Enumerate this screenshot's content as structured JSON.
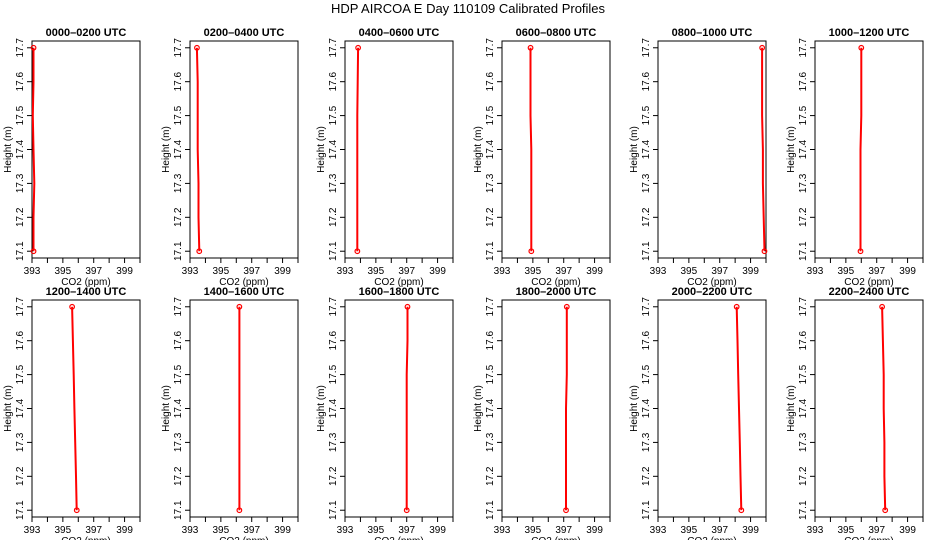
{
  "title": "HDP AIRCOA E  Day 110109  Calibrated Profiles",
  "colors": {
    "profile": "#ff0000",
    "axis": "#000000"
  },
  "axes": {
    "xlabel": "CO2 (ppm)",
    "ylabel": "Height (m)",
    "xlim": [
      393,
      400
    ],
    "ylim": [
      17.08,
      17.72
    ],
    "xticks": [
      393,
      394,
      395,
      396,
      397,
      398,
      399,
      400
    ],
    "xticklabels": [
      "393",
      "",
      "395",
      "",
      "397",
      "",
      "399",
      ""
    ],
    "yticks": [
      17.1,
      17.2,
      17.3,
      17.4,
      17.5,
      17.6,
      17.7
    ],
    "yticklabels": [
      "17.1",
      "17.2",
      "17.3",
      "17.4",
      "17.5",
      "17.6",
      "17.7"
    ]
  },
  "chart_data": [
    {
      "type": "line",
      "title": "0000–0200 UTC",
      "x": [
        393.1,
        393.1,
        393.15,
        393.1,
        393.05,
        393.1,
        393.1
      ],
      "y": [
        17.1,
        17.2,
        17.3,
        17.4,
        17.5,
        17.6,
        17.7
      ]
    },
    {
      "type": "line",
      "title": "0200–0400 UTC",
      "x": [
        393.6,
        393.55,
        393.55,
        393.5,
        393.5,
        393.5,
        393.45
      ],
      "y": [
        17.1,
        17.2,
        17.3,
        17.4,
        17.5,
        17.6,
        17.7
      ]
    },
    {
      "type": "line",
      "title": "0400–0600 UTC",
      "x": [
        393.8,
        393.8,
        393.8,
        393.8,
        393.8,
        393.82,
        393.85
      ],
      "y": [
        17.1,
        17.2,
        17.3,
        17.4,
        17.5,
        17.6,
        17.7
      ]
    },
    {
      "type": "line",
      "title": "0600–0800 UTC",
      "x": [
        394.9,
        394.9,
        394.9,
        394.9,
        394.85,
        394.85,
        394.85
      ],
      "y": [
        17.1,
        17.2,
        17.3,
        17.4,
        17.5,
        17.6,
        17.7
      ]
    },
    {
      "type": "line",
      "title": "0800–1000 UTC",
      "x": [
        399.9,
        399.85,
        399.8,
        399.8,
        399.75,
        399.75,
        399.75
      ],
      "y": [
        17.1,
        17.2,
        17.3,
        17.4,
        17.5,
        17.6,
        17.7
      ]
    },
    {
      "type": "line",
      "title": "1000–1200 UTC",
      "x": [
        395.95,
        395.95,
        395.95,
        395.95,
        396.0,
        396.0,
        396.0
      ],
      "y": [
        17.1,
        17.2,
        17.3,
        17.4,
        17.5,
        17.6,
        17.7
      ]
    },
    {
      "type": "line",
      "title": "1200–1400 UTC",
      "x": [
        395.9,
        395.85,
        395.8,
        395.75,
        395.7,
        395.65,
        395.6
      ],
      "y": [
        17.1,
        17.2,
        17.3,
        17.4,
        17.5,
        17.6,
        17.7
      ]
    },
    {
      "type": "line",
      "title": "1400–1600 UTC",
      "x": [
        396.2,
        396.2,
        396.2,
        396.2,
        396.2,
        396.2,
        396.2
      ],
      "y": [
        17.1,
        17.2,
        17.3,
        17.4,
        17.5,
        17.6,
        17.7
      ]
    },
    {
      "type": "line",
      "title": "1600–1800 UTC",
      "x": [
        397.0,
        397.0,
        397.0,
        397.0,
        397.0,
        397.05,
        397.05
      ],
      "y": [
        17.1,
        17.2,
        17.3,
        17.4,
        17.5,
        17.6,
        17.7
      ]
    },
    {
      "type": "line",
      "title": "1800–2000 UTC",
      "x": [
        397.15,
        397.15,
        397.15,
        397.15,
        397.2,
        397.2,
        397.2
      ],
      "y": [
        17.1,
        17.2,
        17.3,
        17.4,
        17.5,
        17.6,
        17.7
      ]
    },
    {
      "type": "line",
      "title": "2000–2200 UTC",
      "x": [
        398.4,
        398.35,
        398.3,
        398.25,
        398.2,
        398.15,
        398.1
      ],
      "y": [
        17.1,
        17.2,
        17.3,
        17.4,
        17.5,
        17.6,
        17.7
      ]
    },
    {
      "type": "line",
      "title": "2200–2400 UTC",
      "x": [
        397.55,
        397.5,
        397.5,
        397.45,
        397.45,
        397.4,
        397.35
      ],
      "y": [
        17.1,
        17.2,
        17.3,
        17.4,
        17.5,
        17.6,
        17.7
      ]
    }
  ]
}
